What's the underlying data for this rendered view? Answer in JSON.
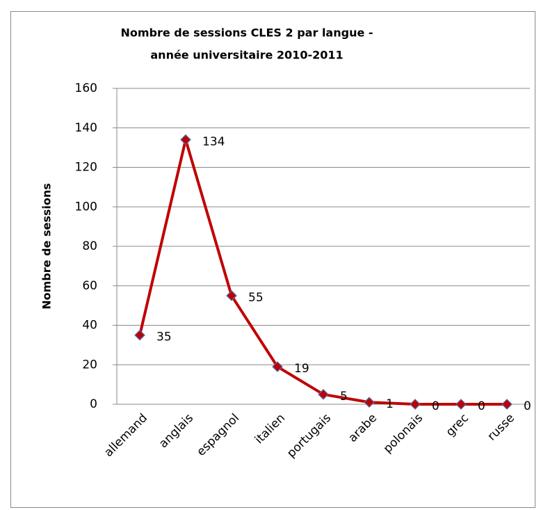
{
  "chart_data": {
    "type": "line",
    "title": [
      "Nombre de sessions CLES 2 par langue -",
      "année universitaire 2010-2011"
    ],
    "y_label": "Nombre de sessions",
    "categories": [
      "allemand",
      "anglais",
      "espagnol",
      "italien",
      "portugais",
      "arabe",
      "polonais",
      "grec",
      "russe"
    ],
    "values": [
      35,
      134,
      55,
      19,
      5,
      1,
      0,
      0,
      0
    ],
    "color": "#c00000",
    "marker_color": "#c00000",
    "marker_edge": "#4f6fb0",
    "ylim": [
      0,
      160
    ],
    "yticks": [
      0,
      20,
      40,
      60,
      80,
      100,
      120,
      140,
      160
    ],
    "grid": true
  }
}
